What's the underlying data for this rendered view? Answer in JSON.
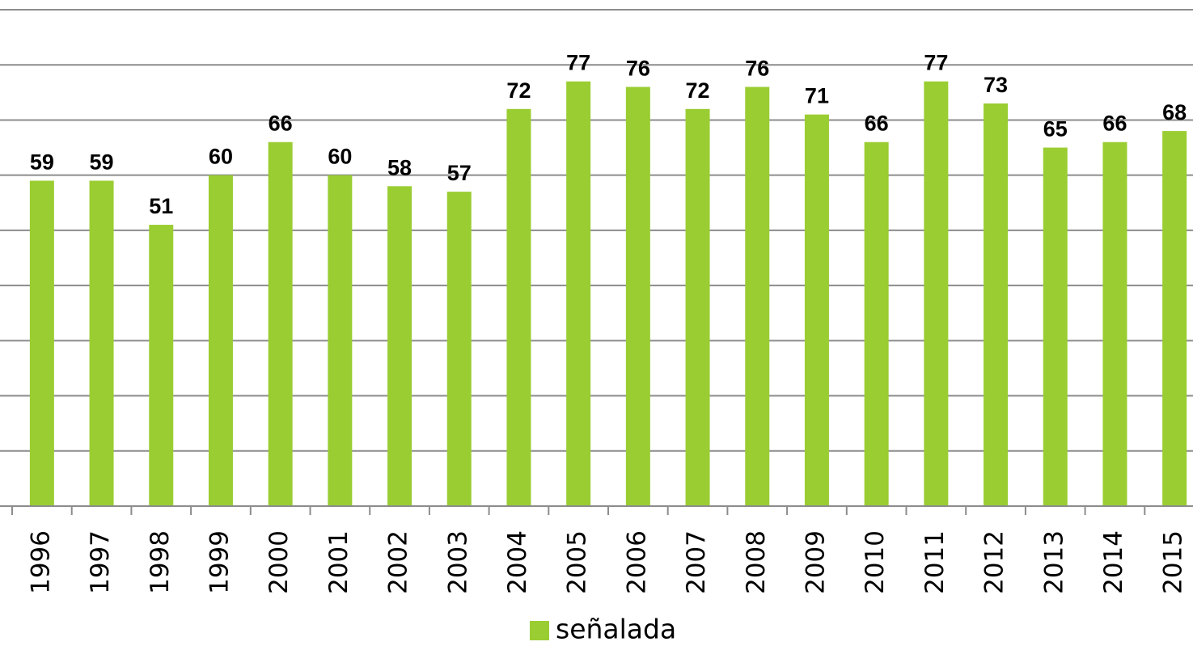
{
  "chart_data": {
    "type": "bar",
    "categories": [
      "1996",
      "1997",
      "1998",
      "1999",
      "2000",
      "2001",
      "2002",
      "2003",
      "2004",
      "2005",
      "2006",
      "2007",
      "2008",
      "2009",
      "2010",
      "2011",
      "2012",
      "2013",
      "2014",
      "2015"
    ],
    "series": [
      {
        "name": "señalada",
        "color": "#9acd32",
        "values": [
          59,
          59,
          51,
          60,
          66,
          60,
          58,
          57,
          72,
          77,
          76,
          72,
          76,
          71,
          66,
          77,
          73,
          65,
          66,
          68
        ]
      }
    ],
    "ylim": [
      0,
      90
    ],
    "yticks": [
      0,
      10,
      20,
      30,
      40,
      50,
      60,
      70,
      80,
      90
    ],
    "grid": true,
    "show_ytick_labels": false,
    "data_labels": true,
    "legend": "bottom"
  }
}
